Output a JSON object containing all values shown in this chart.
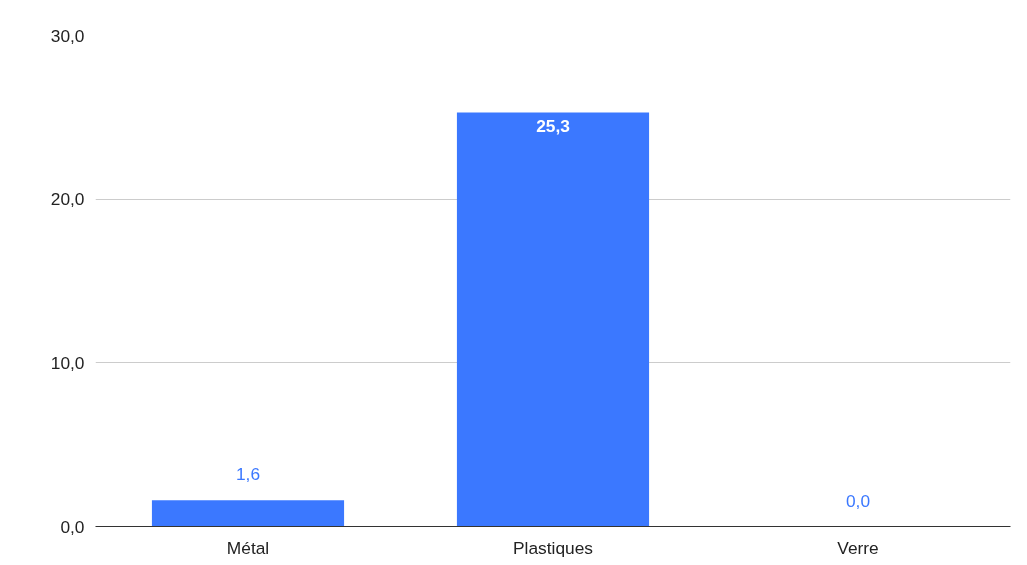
{
  "chart_data": {
    "type": "bar",
    "categories": [
      "Métal",
      "Plastiques",
      "Verre"
    ],
    "values": [
      1.6,
      25.3,
      0.0
    ],
    "value_labels": [
      "1,6",
      "25,3",
      "0,0"
    ],
    "color": "#3b78ff",
    "ylim": [
      0,
      30
    ],
    "yticks": [
      {
        "value": 0,
        "label": "0,0"
      },
      {
        "value": 10,
        "label": "10,0"
      },
      {
        "value": 20,
        "label": "20,0"
      },
      {
        "value": 30,
        "label": "30,0"
      }
    ],
    "grid": "y"
  }
}
